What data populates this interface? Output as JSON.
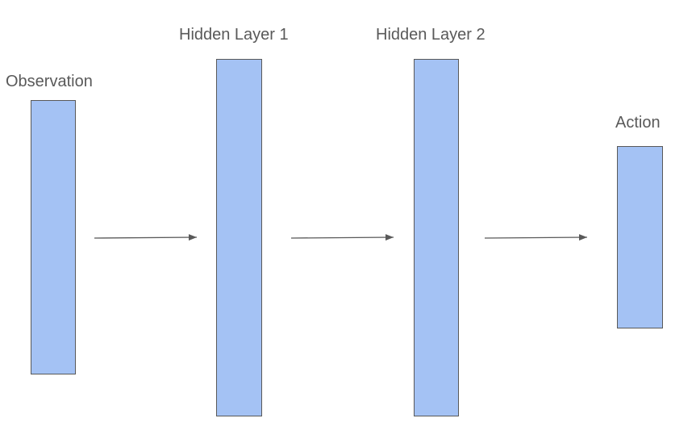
{
  "diagram": {
    "layers": [
      {
        "id": "observation",
        "label": "Observation"
      },
      {
        "id": "hidden-layer-1",
        "label": "Hidden Layer 1"
      },
      {
        "id": "hidden-layer-2",
        "label": "Hidden Layer 2"
      },
      {
        "id": "action",
        "label": "Action"
      }
    ],
    "connections": [
      {
        "from": "observation",
        "to": "hidden-layer-1"
      },
      {
        "from": "hidden-layer-1",
        "to": "hidden-layer-2"
      },
      {
        "from": "hidden-layer-2",
        "to": "action"
      }
    ],
    "colors": {
      "layer_fill": "#a4c2f4",
      "layer_border": "#595959",
      "arrow": "#595959",
      "label_text": "#595959"
    }
  }
}
